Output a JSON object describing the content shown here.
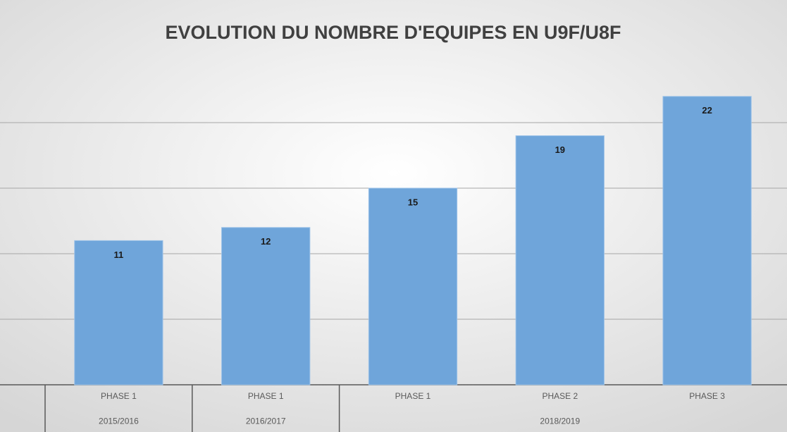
{
  "chart_data": {
    "type": "bar",
    "title": "EVOLUTION DU NOMBRE D'EQUIPES EN U9F/U8F",
    "categories": [
      "PHASE 1",
      "PHASE 1",
      "PHASE 1",
      "PHASE 2",
      "PHASE 3"
    ],
    "groups": [
      {
        "label": "2015/2016",
        "span": 1
      },
      {
        "label": "2016/2017",
        "span": 1
      },
      {
        "label": "2018/2019",
        "span": 3
      }
    ],
    "values": [
      11,
      12,
      15,
      19,
      22
    ],
    "color": "#6fa5da",
    "ylim": [
      0,
      25
    ],
    "yticks": [
      0,
      5,
      10,
      15,
      20
    ],
    "grid": true
  }
}
